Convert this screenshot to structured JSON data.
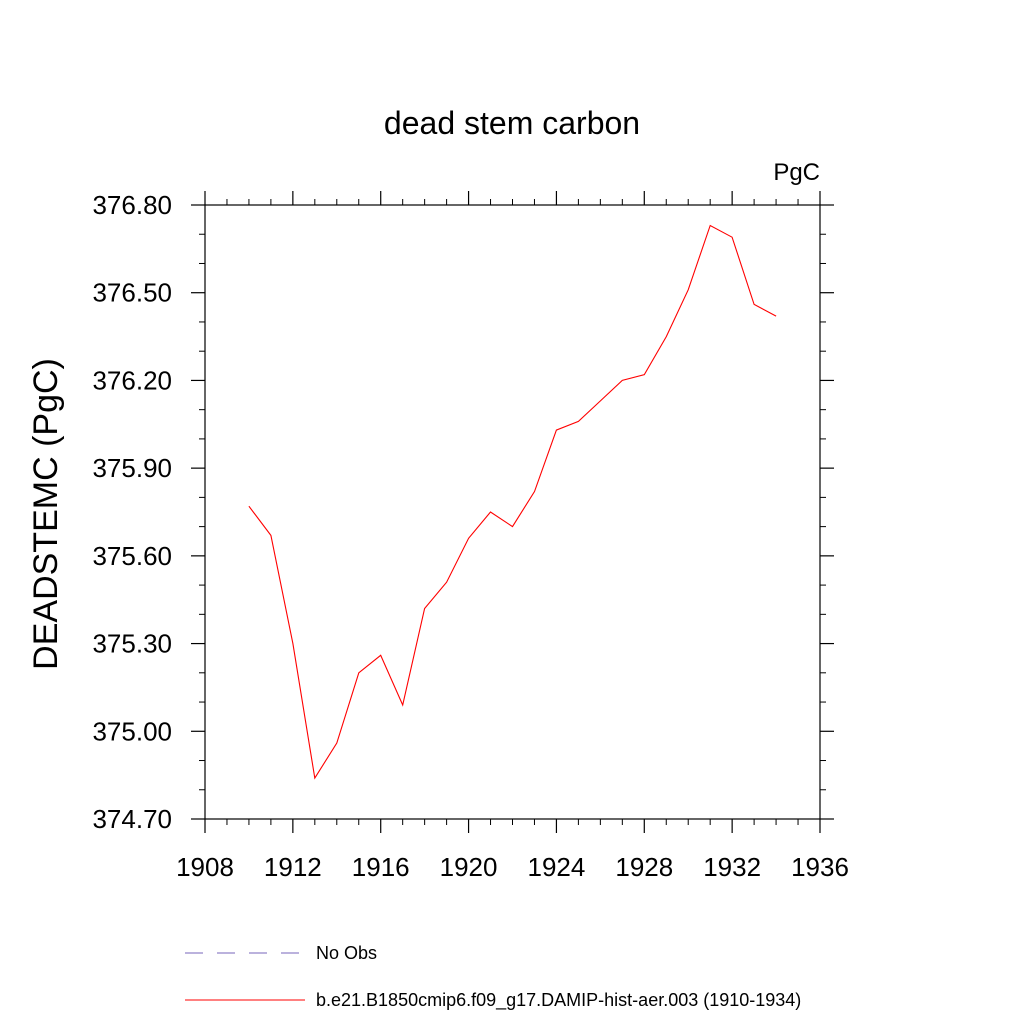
{
  "chart_data": {
    "type": "line",
    "title": "dead stem carbon",
    "units_label": "PgC",
    "ylabel": "DEADSTEMC  (PgC)",
    "xlabel": "",
    "xlim": [
      1908,
      1936
    ],
    "ylim": [
      374.7,
      376.8
    ],
    "x_ticks": [
      "1908",
      "1912",
      "1916",
      "1920",
      "1924",
      "1928",
      "1932",
      "1936"
    ],
    "y_ticks": [
      "374.70",
      "375.00",
      "375.30",
      "375.60",
      "375.90",
      "376.20",
      "376.50",
      "376.80"
    ],
    "grid": false,
    "legend_position": "bottom",
    "series": [
      {
        "name": "b.e21.B1850cmip6.f09_g17.DAMIP-hist-aer.003 (1910-1934)",
        "color": "#ff0000",
        "style": "solid",
        "x": [
          1910,
          1911,
          1912,
          1913,
          1914,
          1915,
          1916,
          1917,
          1918,
          1919,
          1920,
          1921,
          1922,
          1923,
          1924,
          1925,
          1926,
          1927,
          1928,
          1929,
          1930,
          1931,
          1932,
          1933,
          1934
        ],
        "values": [
          375.77,
          375.67,
          375.3,
          374.84,
          374.96,
          375.2,
          375.26,
          375.09,
          375.42,
          375.51,
          375.66,
          375.75,
          375.7,
          375.82,
          376.03,
          376.06,
          376.13,
          376.2,
          376.22,
          376.35,
          376.51,
          376.73,
          376.69,
          376.46,
          376.42
        ]
      }
    ],
    "legend": [
      {
        "label": "No Obs",
        "color": "#7766bb",
        "style": "dashed"
      },
      {
        "label": "b.e21.B1850cmip6.f09_g17.DAMIP-hist-aer.003 (1910-1934)",
        "color": "#ff0000",
        "style": "solid"
      }
    ]
  }
}
